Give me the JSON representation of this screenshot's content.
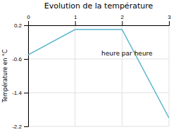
{
  "chart_data": {
    "type": "line",
    "title": "Evolution de la température",
    "y_label": "Température en °C",
    "annotation": "heure par heure",
    "x": [
      0,
      1,
      2,
      3
    ],
    "values": [
      -0.5,
      0.1,
      0.1,
      -2.0
    ],
    "color": "#5ab4cc",
    "xlim": [
      0,
      3
    ],
    "ylim": [
      -2.2,
      0.2
    ],
    "xticks": [
      0,
      1,
      2,
      3
    ],
    "yticks": [
      0.2,
      -0.6,
      -1.4,
      -2.2
    ],
    "grid": true
  }
}
